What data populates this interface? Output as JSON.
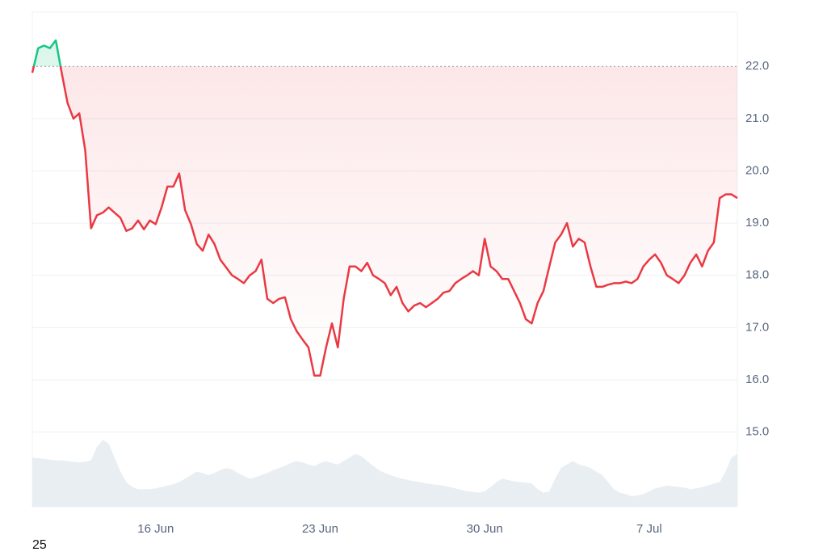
{
  "chart_data": {
    "type": "line",
    "categories": [
      null,
      null,
      null,
      null,
      null,
      null,
      null,
      null,
      null,
      null,
      null,
      null,
      null,
      null,
      null,
      null,
      null,
      null,
      null,
      null,
      null,
      "16 Jun",
      null,
      null,
      null,
      null,
      null,
      null,
      null,
      null,
      null,
      null,
      null,
      null,
      null,
      null,
      null,
      null,
      null,
      null,
      null,
      null,
      null,
      null,
      null,
      null,
      null,
      null,
      null,
      "23 Jun",
      null,
      null,
      null,
      null,
      null,
      null,
      null,
      null,
      null,
      null,
      null,
      null,
      null,
      null,
      null,
      null,
      null,
      null,
      null,
      null,
      null,
      null,
      null,
      null,
      null,
      null,
      null,
      "30 Jun",
      null,
      null,
      null,
      null,
      null,
      null,
      null,
      null,
      null,
      null,
      null,
      null,
      null,
      null,
      null,
      null,
      null,
      null,
      null,
      null,
      null,
      null,
      null,
      null,
      null,
      null,
      null,
      "7 Jul",
      null,
      null,
      null,
      null,
      null,
      null,
      null,
      null,
      null,
      null,
      null,
      null,
      null,
      null,
      null
    ],
    "series": [
      {
        "values": [
          21.88,
          22.35,
          22.4,
          22.35,
          22.5,
          21.88,
          21.3,
          21.0,
          21.1,
          20.4,
          18.9,
          19.15,
          19.2,
          19.3,
          19.2,
          19.1,
          18.85,
          18.9,
          19.05,
          18.88,
          19.05,
          18.98,
          19.3,
          19.7,
          19.7,
          19.95,
          19.25,
          18.98,
          18.6,
          18.47,
          18.78,
          18.6,
          18.3,
          18.15,
          18.0,
          17.93,
          17.85,
          18.0,
          18.08,
          18.3,
          17.55,
          17.47,
          17.55,
          17.58,
          17.16,
          16.93,
          16.77,
          16.62,
          16.08,
          16.08,
          16.62,
          17.08,
          16.62,
          17.55,
          18.17,
          18.17,
          18.08,
          18.24,
          18.0,
          17.93,
          17.85,
          17.62,
          17.78,
          17.47,
          17.31,
          17.42,
          17.47,
          17.39,
          17.47,
          17.55,
          17.67,
          17.7,
          17.85,
          17.93,
          18.0,
          18.08,
          18.0,
          18.7,
          18.17,
          18.08,
          17.93,
          17.93,
          17.7,
          17.47,
          17.16,
          17.08,
          17.47,
          17.7,
          18.17,
          18.63,
          18.78,
          19.0,
          18.55,
          18.7,
          18.63,
          18.17,
          17.78,
          17.78,
          17.82,
          17.85,
          17.85,
          17.88,
          17.85,
          17.93,
          18.17,
          18.3,
          18.4,
          18.24,
          18.0,
          17.93,
          17.85,
          18.0,
          18.24,
          18.4,
          18.17,
          18.47,
          18.63,
          19.48,
          19.55,
          19.55,
          19.48
        ],
        "color_above": "#16c784",
        "color_below": "#ea3943"
      }
    ],
    "baseline": 22.0,
    "ylim": [
      13.57,
      23.04
    ],
    "yticks": [
      {
        "value": 15,
        "label": "15.0"
      },
      {
        "value": 16,
        "label": "16.0"
      },
      {
        "value": 17,
        "label": "17.0"
      },
      {
        "value": 18,
        "label": "18.0"
      },
      {
        "value": 19,
        "label": "19.0"
      },
      {
        "value": 20,
        "label": "20.0"
      },
      {
        "value": 21,
        "label": "21.0"
      },
      {
        "value": 22,
        "label": "22.0"
      }
    ],
    "grid": true,
    "volume": {
      "color": "#e9eef2",
      "lim": [
        0,
        100
      ],
      "values": [
        70,
        69,
        68,
        67,
        66,
        66,
        65,
        64,
        63,
        64,
        66,
        85,
        95,
        90,
        70,
        50,
        35,
        28,
        25,
        25,
        25,
        26,
        28,
        30,
        32,
        35,
        40,
        45,
        50,
        48,
        45,
        48,
        52,
        55,
        53,
        48,
        44,
        40,
        42,
        45,
        48,
        52,
        55,
        58,
        62,
        65,
        63,
        60,
        58,
        62,
        65,
        62,
        60,
        65,
        70,
        75,
        72,
        65,
        58,
        52,
        48,
        45,
        42,
        40,
        38,
        36,
        35,
        33,
        32,
        31,
        30,
        28,
        26,
        24,
        22,
        21,
        20,
        22,
        28,
        35,
        40,
        38,
        36,
        35,
        34,
        33,
        25,
        20,
        22,
        40,
        55,
        60,
        65,
        60,
        58,
        55,
        50,
        45,
        35,
        25,
        20,
        18,
        15,
        16,
        18,
        22,
        26,
        28,
        30,
        29,
        28,
        27,
        25,
        26,
        28,
        30,
        33,
        35,
        50,
        70,
        75
      ]
    },
    "footer": "25"
  }
}
